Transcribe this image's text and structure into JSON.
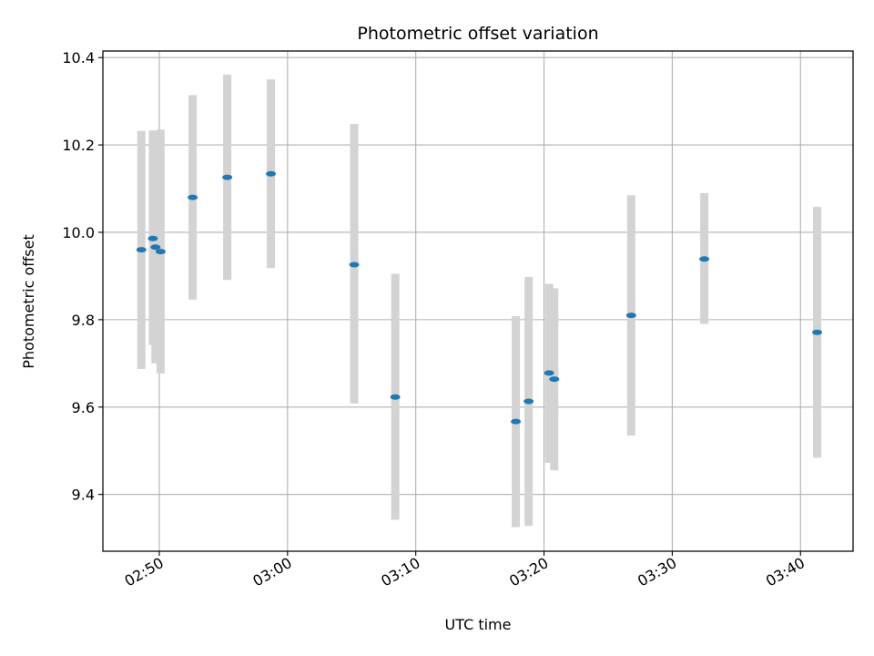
{
  "chart_data": {
    "type": "scatter",
    "title": "Photometric offset variation",
    "xlabel": "UTC time",
    "ylabel": "Photometric offset",
    "x_tick_labels": [
      "02:50",
      "03:00",
      "03:10",
      "03:20",
      "03:30",
      "03:40"
    ],
    "y_tick_labels": [
      "9.4",
      "9.6",
      "9.8",
      "10.0",
      "10.2",
      "10.4"
    ],
    "x_ticks": [
      "02:50",
      "03:00",
      "03:10",
      "03:20",
      "03:30",
      "03:40"
    ],
    "y_ticks": [
      9.4,
      9.6,
      9.8,
      10.0,
      10.2,
      10.4
    ],
    "xlim": [
      "02:45:36",
      "03:44:06"
    ],
    "ylim": [
      9.27,
      10.415
    ],
    "grid": true,
    "point_color": "#1f77b4",
    "errorbar_color": "#d3d3d3",
    "points": [
      {
        "x": "02:48:36",
        "y": 9.96,
        "err_low": 9.687,
        "err_high": 10.232
      },
      {
        "x": "02:49:30",
        "y": 9.986,
        "err_low": 9.742,
        "err_high": 10.233
      },
      {
        "x": "02:49:42",
        "y": 9.966,
        "err_low": 9.7,
        "err_high": 10.233
      },
      {
        "x": "02:50:06",
        "y": 9.956,
        "err_low": 9.677,
        "err_high": 10.235
      },
      {
        "x": "02:52:36",
        "y": 10.08,
        "err_low": 9.846,
        "err_high": 10.314
      },
      {
        "x": "02:55:18",
        "y": 10.126,
        "err_low": 9.891,
        "err_high": 10.361
      },
      {
        "x": "02:58:42",
        "y": 10.134,
        "err_low": 9.918,
        "err_high": 10.35
      },
      {
        "x": "03:05:12",
        "y": 9.926,
        "err_low": 9.608,
        "err_high": 10.248
      },
      {
        "x": "03:08:24",
        "y": 9.623,
        "err_low": 9.342,
        "err_high": 9.905
      },
      {
        "x": "03:17:48",
        "y": 9.567,
        "err_low": 9.325,
        "err_high": 9.808
      },
      {
        "x": "03:18:48",
        "y": 9.613,
        "err_low": 9.328,
        "err_high": 9.898
      },
      {
        "x": "03:20:24",
        "y": 9.678,
        "err_low": 9.472,
        "err_high": 9.882
      },
      {
        "x": "03:20:48",
        "y": 9.664,
        "err_low": 9.455,
        "err_high": 9.872
      },
      {
        "x": "03:26:48",
        "y": 9.81,
        "err_low": 9.535,
        "err_high": 10.085
      },
      {
        "x": "03:32:30",
        "y": 9.939,
        "err_low": 9.79,
        "err_high": 10.09
      },
      {
        "x": "03:41:18",
        "y": 9.771,
        "err_low": 9.484,
        "err_high": 10.058
      }
    ]
  }
}
